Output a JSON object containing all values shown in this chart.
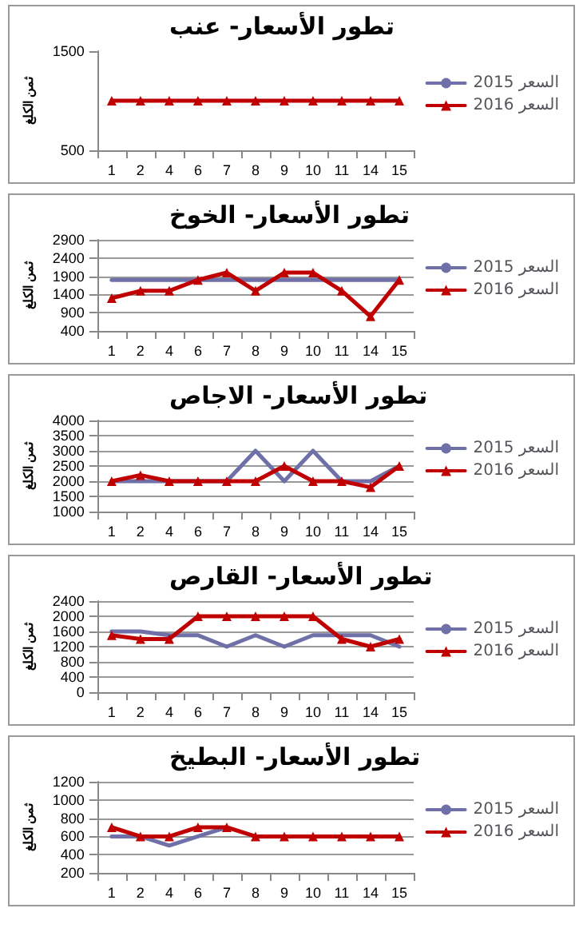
{
  "chart_data": [
    {
      "type": "line",
      "title": "تطور الأسعار- عنب",
      "ylabel": "ثمن الكلغ",
      "categories": [
        "1",
        "2",
        "4",
        "6",
        "7",
        "8",
        "9",
        "10",
        "11",
        "14",
        "15"
      ],
      "ylim": [
        500,
        1500
      ],
      "yticks": [
        500,
        1500
      ],
      "legend": "right",
      "series": [
        {
          "name": "السعر 2015",
          "color": "#7070a8",
          "marker": "none",
          "values": [
            null,
            null,
            null,
            null,
            null,
            null,
            null,
            null,
            null,
            null,
            null
          ]
        },
        {
          "name": "السعر 2016",
          "color": "#c00000",
          "marker": "triangle",
          "values": [
            1000,
            1000,
            1000,
            1000,
            1000,
            1000,
            1000,
            1000,
            1000,
            1000,
            1000
          ]
        }
      ]
    },
    {
      "type": "line",
      "title": "تطور الأسعار- الخوخ",
      "ylabel": "ثمن الكلغ",
      "categories": [
        "1",
        "2",
        "4",
        "6",
        "7",
        "8",
        "9",
        "10",
        "11",
        "14",
        "15"
      ],
      "ylim": [
        400,
        2900
      ],
      "yticks": [
        400,
        900,
        1400,
        1900,
        2400,
        2900
      ],
      "grid": "y",
      "legend": "right",
      "series": [
        {
          "name": "السعر 2015",
          "color": "#7070a8",
          "marker": "none",
          "values": [
            1800,
            1800,
            1800,
            1800,
            1800,
            1800,
            1800,
            1800,
            1800,
            1800,
            1800
          ]
        },
        {
          "name": "السعر 2016",
          "color": "#c00000",
          "marker": "triangle",
          "values": [
            1300,
            1500,
            1500,
            1800,
            2000,
            1500,
            2000,
            2000,
            1500,
            800,
            1800
          ]
        }
      ]
    },
    {
      "type": "line",
      "title": "تطور الأسعار- الاجاص",
      "ylabel": "ثمن الكلغ",
      "categories": [
        "1",
        "2",
        "4",
        "6",
        "7",
        "8",
        "9",
        "10",
        "11",
        "14",
        "15"
      ],
      "ylim": [
        1000,
        4000
      ],
      "yticks": [
        1000,
        1500,
        2000,
        2500,
        3000,
        3500,
        4000
      ],
      "grid": "y",
      "legend": "right",
      "series": [
        {
          "name": "السعر 2015",
          "color": "#7070a8",
          "marker": "none",
          "values": [
            2000,
            2000,
            2000,
            2000,
            2000,
            3000,
            2000,
            3000,
            2000,
            2000,
            2500
          ]
        },
        {
          "name": "السعر 2016",
          "color": "#c00000",
          "marker": "triangle",
          "values": [
            2000,
            2200,
            2000,
            2000,
            2000,
            2000,
            2500,
            2000,
            2000,
            1800,
            2500
          ]
        }
      ]
    },
    {
      "type": "line",
      "title": "تطور الأسعار- القارص",
      "ylabel": "ثمن الكلغ",
      "categories": [
        "1",
        "2",
        "4",
        "6",
        "7",
        "8",
        "9",
        "10",
        "11",
        "14",
        "15"
      ],
      "ylim": [
        0,
        2400
      ],
      "yticks": [
        0,
        400,
        800,
        1200,
        1600,
        2000,
        2400
      ],
      "grid": "y",
      "legend": "right",
      "series": [
        {
          "name": "السعر 2015",
          "color": "#7070a8",
          "marker": "none",
          "values": [
            1600,
            1600,
            1500,
            1500,
            1200,
            1500,
            1200,
            1500,
            1500,
            1500,
            1200
          ]
        },
        {
          "name": "السعر 2016",
          "color": "#c00000",
          "marker": "triangle",
          "values": [
            1500,
            1400,
            1400,
            2000,
            2000,
            2000,
            2000,
            2000,
            1400,
            1200,
            1400
          ]
        }
      ]
    },
    {
      "type": "line",
      "title": "تطور الأسعار- البطيخ",
      "ylabel": "ثمن الكلغ",
      "categories": [
        "1",
        "2",
        "4",
        "6",
        "7",
        "8",
        "9",
        "10",
        "11",
        "14",
        "15"
      ],
      "ylim": [
        200,
        1200
      ],
      "yticks": [
        200,
        400,
        600,
        800,
        1000,
        1200
      ],
      "grid": "y",
      "legend": "right",
      "series": [
        {
          "name": "السعر 2015",
          "color": "#7070a8",
          "marker": "none",
          "values": [
            600,
            600,
            500,
            600,
            700,
            null,
            null,
            null,
            null,
            null,
            null
          ]
        },
        {
          "name": "السعر 2016",
          "color": "#c00000",
          "marker": "triangle",
          "values": [
            700,
            600,
            600,
            700,
            700,
            600,
            600,
            600,
            600,
            600,
            600
          ]
        }
      ]
    }
  ]
}
